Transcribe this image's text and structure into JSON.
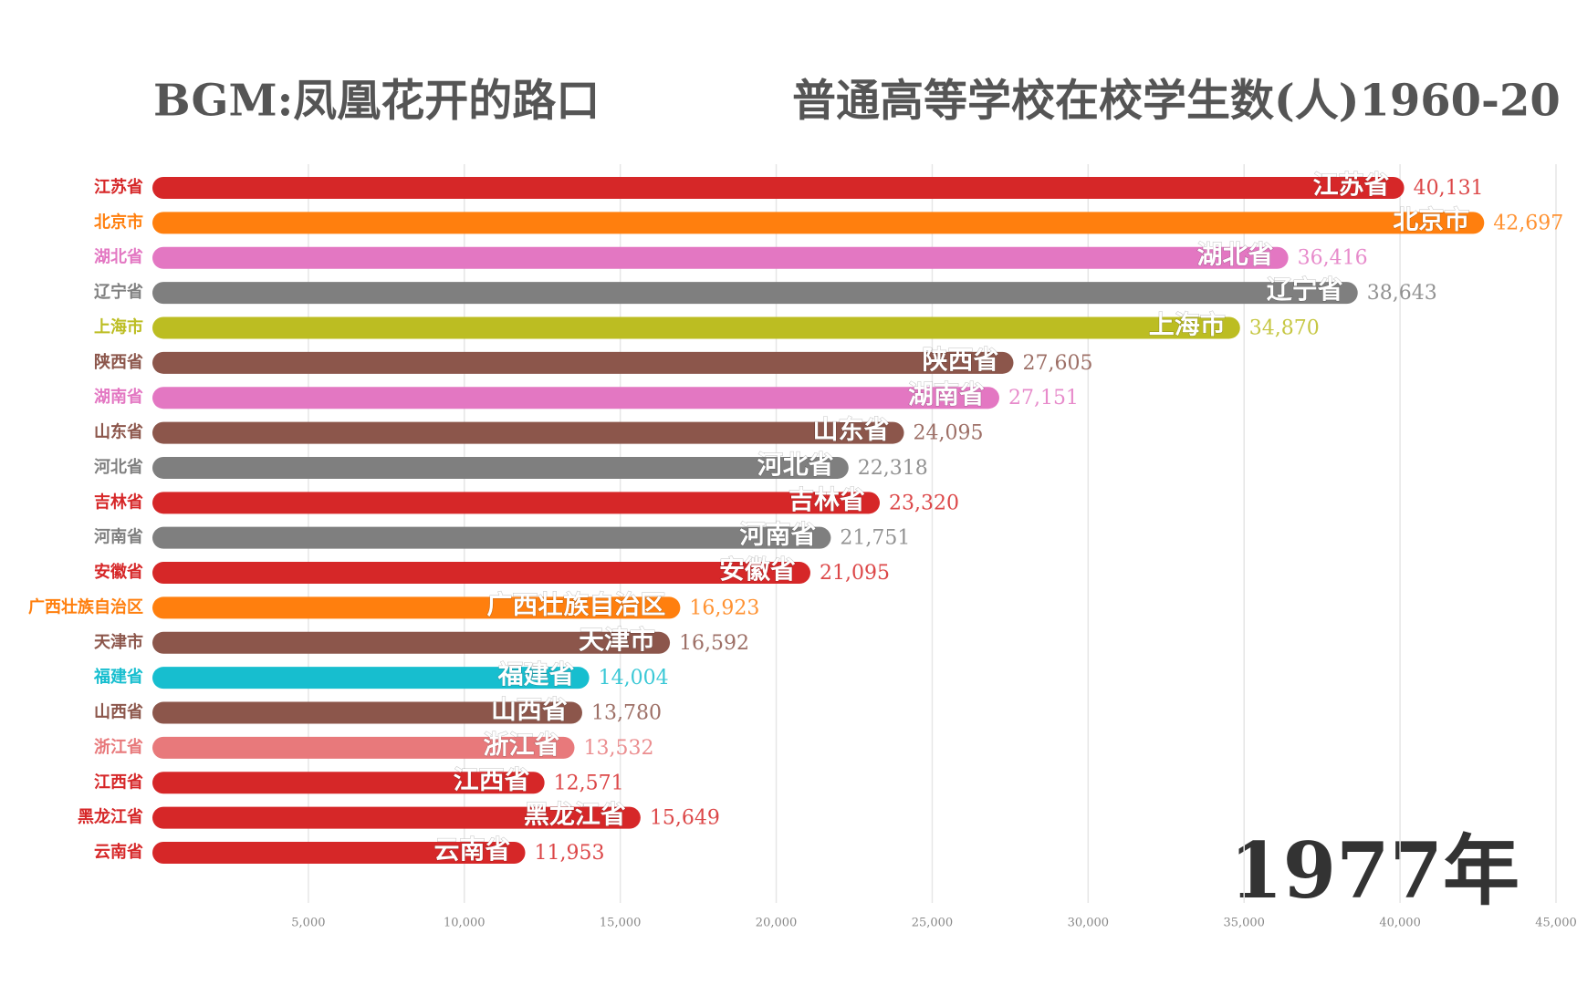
{
  "chart_data": {
    "type": "bar",
    "title": "BGM:凤凰花开的路口",
    "subtitle": "普通高等学校在校学生数(人)1960-20",
    "annotation": "1977年",
    "categories": [
      "江苏省",
      "北京市",
      "湖北省",
      "辽宁省",
      "上海市",
      "陕西省",
      "湖南省",
      "山东省",
      "河北省",
      "吉林省",
      "河南省",
      "安徽省",
      "广西壮族自治区",
      "天津市",
      "福建省",
      "山西省",
      "浙江省",
      "江西省",
      "黑龙江省",
      "云南省"
    ],
    "values": [
      40131,
      42697,
      36416,
      38643,
      34870,
      27605,
      27151,
      24095,
      22318,
      23320,
      21751,
      21095,
      16923,
      16592,
      14004,
      13780,
      13532,
      12571,
      15649,
      11953
    ],
    "value_labels": [
      "40,131",
      "42,697",
      "36,416",
      "38,643",
      "34,870",
      "27,605",
      "27,151",
      "24,095",
      "22,318",
      "23,320",
      "21,751",
      "21,095",
      "16,923",
      "16,592",
      "14,004",
      "13,780",
      "13,532",
      "12,571",
      "15,649",
      "11,953"
    ],
    "colors": [
      "#d62728",
      "#ff7f0e",
      "#e377c2",
      "#7f7f7f",
      "#bcbd22",
      "#8c564b",
      "#e377c2",
      "#8c564b",
      "#7f7f7f",
      "#d62728",
      "#7f7f7f",
      "#d62728",
      "#ff7f0e",
      "#8c564b",
      "#17becf",
      "#8c564b",
      "#e8797b",
      "#d62728",
      "#d62728",
      "#d62728"
    ],
    "xlim": [
      0,
      45000
    ],
    "xticks": [
      {
        "value": 5000,
        "label": "5,000"
      },
      {
        "value": 10000,
        "label": "10,000"
      },
      {
        "value": 15000,
        "label": "15,000"
      },
      {
        "value": 20000,
        "label": "20,000"
      },
      {
        "value": 25000,
        "label": "25,000"
      },
      {
        "value": 30000,
        "label": "30,000"
      },
      {
        "value": 35000,
        "label": "35,000"
      },
      {
        "value": 40000,
        "label": "40,000"
      },
      {
        "value": 45000,
        "label": "45,000"
      }
    ],
    "grid": true
  }
}
